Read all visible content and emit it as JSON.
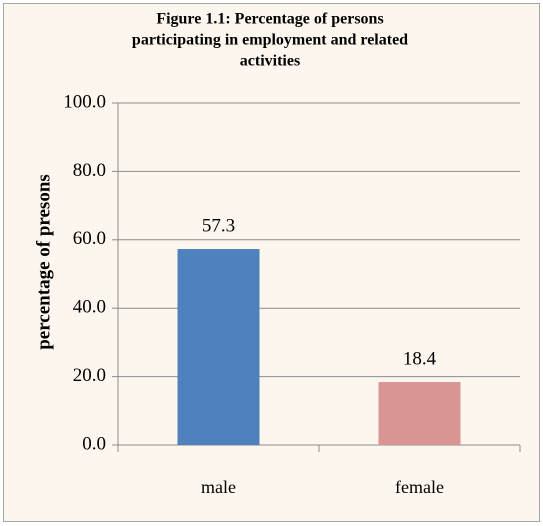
{
  "chart_data": {
    "type": "bar",
    "title": [
      "Figure  1.1: Percentage of persons",
      "participating in employment and related",
      "activities"
    ],
    "y_label": "percentage of presons",
    "categories": [
      "male",
      "female"
    ],
    "values": [
      57.3,
      18.4
    ],
    "colors": [
      "#4f81bd",
      "#d99594"
    ],
    "ylim": [
      0,
      100
    ],
    "yticks": [
      {
        "value": 0,
        "label": "0.0"
      },
      {
        "value": 20,
        "label": "20.0"
      },
      {
        "value": 40,
        "label": "40.0"
      },
      {
        "value": 60,
        "label": "60.0"
      },
      {
        "value": 80,
        "label": "80.0"
      },
      {
        "value": 100,
        "label": "100.0"
      }
    ],
    "grid": true
  }
}
